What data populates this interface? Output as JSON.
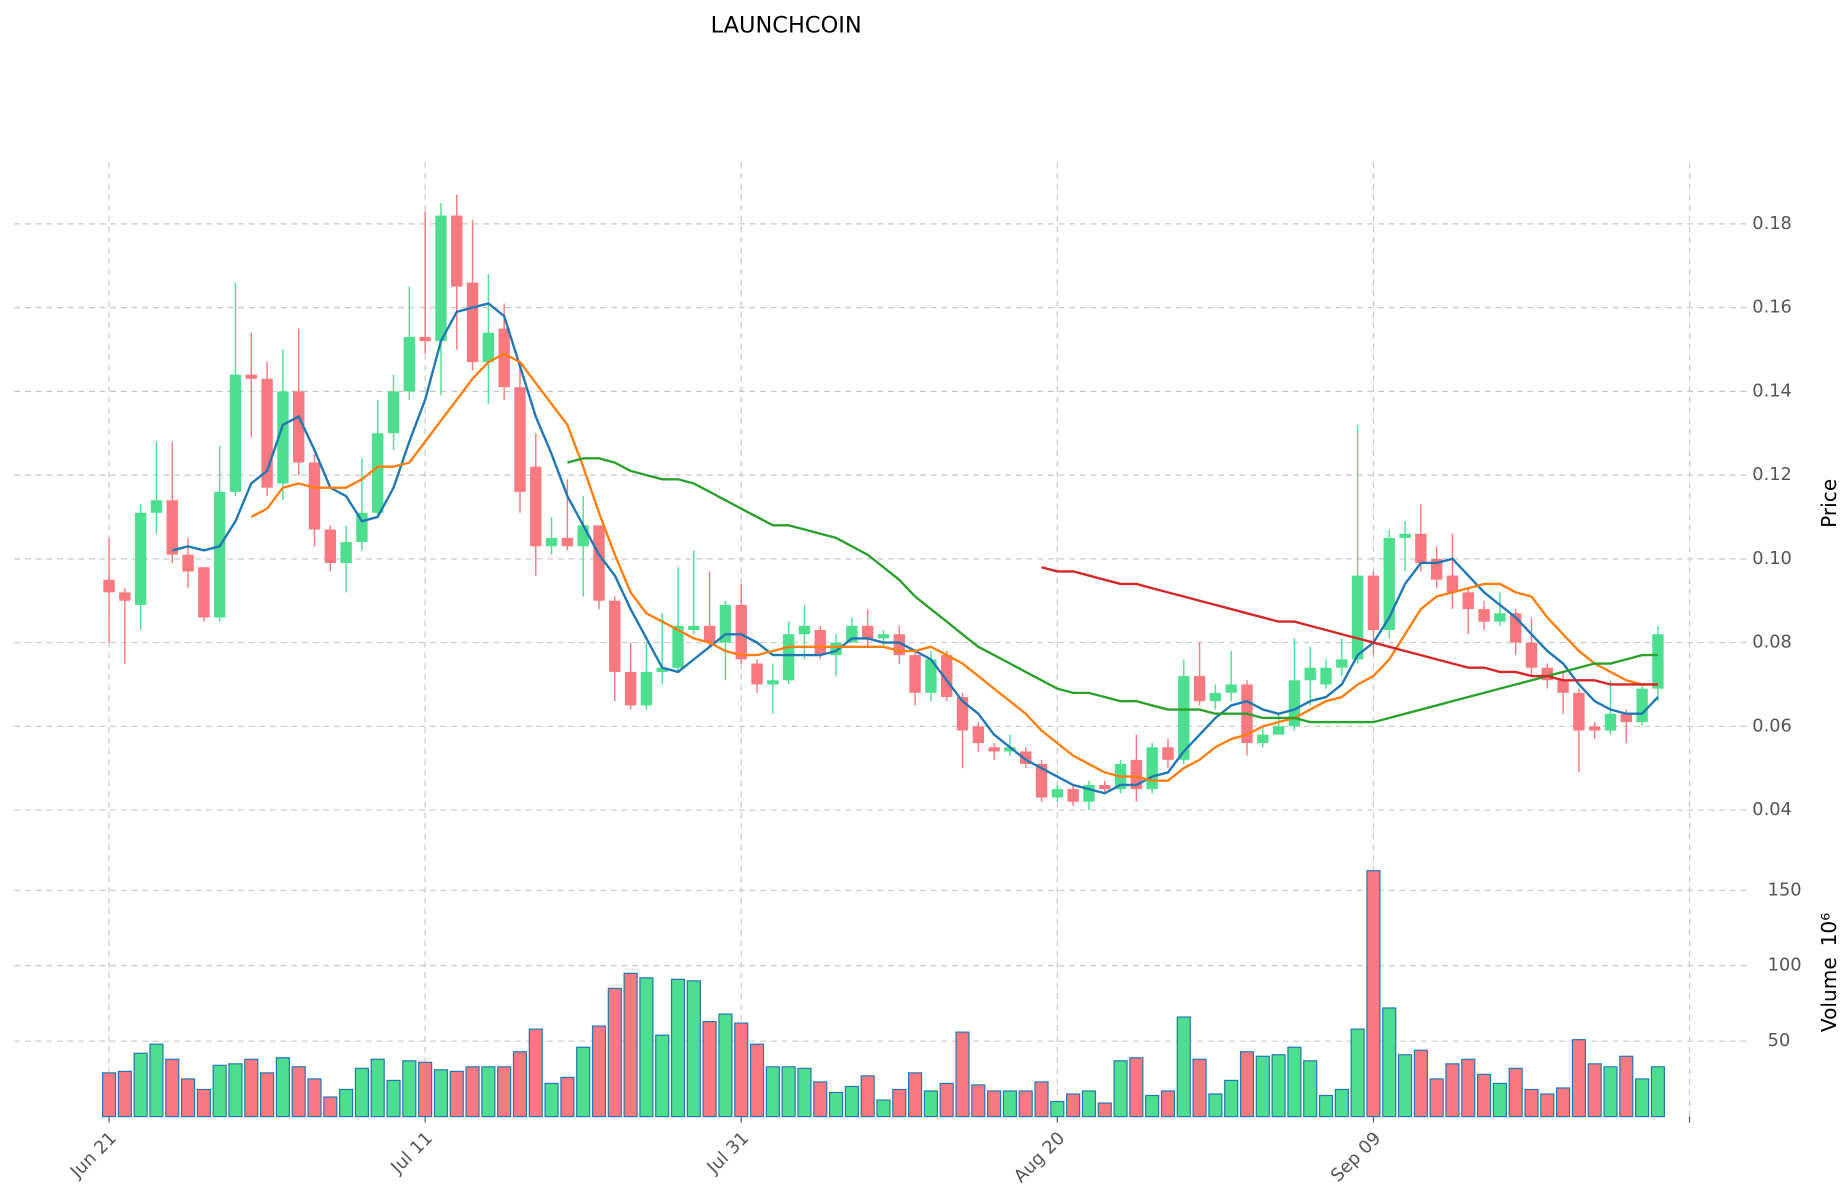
{
  "chart_data": {
    "type": "candlestick",
    "title": "LAUNCHCOIN",
    "ylabel": "Price",
    "volume_label": "Volume",
    "volume_offset": "10⁶",
    "categories": [
      "Jun 21",
      null,
      null,
      null,
      null,
      null,
      null,
      null,
      null,
      null,
      null,
      null,
      null,
      null,
      null,
      null,
      null,
      null,
      null,
      null,
      "Jul 11",
      null,
      null,
      null,
      null,
      null,
      null,
      null,
      null,
      null,
      null,
      null,
      null,
      null,
      null,
      null,
      null,
      null,
      null,
      null,
      "Jul 31",
      null,
      null,
      null,
      null,
      null,
      null,
      null,
      null,
      null,
      null,
      null,
      null,
      null,
      null,
      null,
      null,
      null,
      null,
      null,
      "Aug 20",
      null,
      null,
      null,
      null,
      null,
      null,
      null,
      null,
      null,
      null,
      null,
      null,
      null,
      null,
      null,
      null,
      null,
      null,
      null,
      "Sep 09",
      null,
      null,
      null,
      null,
      null,
      null,
      null,
      null,
      null,
      null,
      null,
      null,
      null,
      null,
      null,
      null,
      null,
      null
    ],
    "open": [
      0.095,
      0.092,
      0.089,
      0.111,
      0.114,
      0.101,
      0.098,
      0.086,
      0.116,
      0.144,
      0.143,
      0.118,
      0.14,
      0.123,
      0.107,
      0.099,
      0.104,
      0.111,
      0.13,
      0.14,
      0.153,
      0.152,
      0.182,
      0.166,
      0.147,
      0.155,
      0.141,
      0.122,
      0.103,
      0.105,
      0.103,
      0.108,
      0.09,
      0.073,
      0.065,
      0.073,
      0.074,
      0.083,
      0.084,
      0.08,
      0.089,
      0.075,
      0.07,
      0.071,
      0.082,
      0.083,
      0.077,
      0.08,
      0.084,
      0.081,
      0.082,
      0.077,
      0.068,
      0.077,
      0.067,
      0.06,
      0.055,
      0.054,
      0.054,
      0.051,
      0.043,
      0.045,
      0.042,
      0.046,
      0.045,
      0.052,
      0.045,
      0.055,
      0.052,
      0.072,
      0.066,
      0.068,
      0.07,
      0.056,
      0.058,
      0.06,
      0.071,
      0.07,
      0.074,
      0.076,
      0.096,
      0.083,
      0.105,
      0.106,
      0.1,
      0.096,
      0.092,
      0.088,
      0.085,
      0.087,
      0.08,
      0.074,
      0.071,
      0.068,
      0.06,
      0.059,
      0.063,
      0.061,
      0.069
    ],
    "high": [
      0.105,
      0.093,
      0.113,
      0.128,
      0.128,
      0.105,
      0.098,
      0.127,
      0.166,
      0.154,
      0.147,
      0.15,
      0.155,
      0.125,
      0.108,
      0.108,
      0.124,
      0.138,
      0.144,
      0.165,
      0.183,
      0.185,
      0.187,
      0.181,
      0.168,
      0.161,
      0.147,
      0.13,
      0.11,
      0.119,
      0.115,
      0.108,
      0.091,
      0.08,
      0.08,
      0.087,
      0.098,
      0.102,
      0.097,
      0.09,
      0.094,
      0.076,
      0.075,
      0.085,
      0.089,
      0.084,
      0.082,
      0.086,
      0.088,
      0.083,
      0.084,
      0.078,
      0.078,
      0.078,
      0.068,
      0.061,
      0.056,
      0.058,
      0.055,
      0.052,
      0.046,
      0.046,
      0.047,
      0.047,
      0.052,
      0.058,
      0.056,
      0.057,
      0.076,
      0.08,
      0.07,
      0.078,
      0.071,
      0.06,
      0.063,
      0.081,
      0.079,
      0.076,
      0.081,
      0.132,
      0.097,
      0.107,
      0.109,
      0.113,
      0.103,
      0.106,
      0.093,
      0.09,
      0.092,
      0.088,
      0.086,
      0.075,
      0.073,
      0.069,
      0.061,
      0.071,
      0.064,
      0.07,
      0.084
    ],
    "low": [
      0.08,
      0.075,
      0.083,
      0.106,
      0.099,
      0.093,
      0.085,
      0.085,
      0.115,
      0.129,
      0.115,
      0.114,
      0.12,
      0.103,
      0.097,
      0.092,
      0.102,
      0.11,
      0.126,
      0.138,
      0.149,
      0.139,
      0.15,
      0.145,
      0.137,
      0.138,
      0.111,
      0.096,
      0.101,
      0.102,
      0.091,
      0.088,
      0.066,
      0.064,
      0.064,
      0.07,
      0.073,
      0.082,
      0.079,
      0.071,
      0.075,
      0.068,
      0.063,
      0.07,
      0.076,
      0.076,
      0.072,
      0.08,
      0.079,
      0.079,
      0.075,
      0.065,
      0.066,
      0.066,
      0.05,
      0.054,
      0.052,
      0.053,
      0.05,
      0.042,
      0.042,
      0.041,
      0.04,
      0.044,
      0.044,
      0.042,
      0.044,
      0.05,
      0.051,
      0.065,
      0.064,
      0.066,
      0.053,
      0.055,
      0.058,
      0.059,
      0.065,
      0.069,
      0.072,
      0.075,
      0.077,
      0.081,
      0.097,
      0.097,
      0.093,
      0.088,
      0.082,
      0.083,
      0.084,
      0.077,
      0.072,
      0.069,
      0.063,
      0.049,
      0.057,
      0.058,
      0.056,
      0.06,
      0.066
    ],
    "close": [
      0.092,
      0.09,
      0.111,
      0.114,
      0.101,
      0.097,
      0.086,
      0.116,
      0.144,
      0.143,
      0.117,
      0.14,
      0.123,
      0.107,
      0.099,
      0.104,
      0.111,
      0.13,
      0.14,
      0.153,
      0.152,
      0.182,
      0.165,
      0.147,
      0.154,
      0.141,
      0.116,
      0.103,
      0.105,
      0.103,
      0.108,
      0.09,
      0.073,
      0.065,
      0.073,
      0.074,
      0.084,
      0.084,
      0.08,
      0.089,
      0.076,
      0.07,
      0.071,
      0.082,
      0.084,
      0.077,
      0.08,
      0.084,
      0.081,
      0.082,
      0.077,
      0.068,
      0.076,
      0.067,
      0.059,
      0.056,
      0.054,
      0.055,
      0.051,
      0.043,
      0.045,
      0.042,
      0.046,
      0.045,
      0.051,
      0.045,
      0.055,
      0.052,
      0.072,
      0.066,
      0.068,
      0.07,
      0.056,
      0.058,
      0.06,
      0.071,
      0.074,
      0.074,
      0.076,
      0.096,
      0.083,
      0.105,
      0.106,
      0.099,
      0.095,
      0.092,
      0.088,
      0.085,
      0.087,
      0.08,
      0.074,
      0.071,
      0.068,
      0.059,
      0.059,
      0.063,
      0.061,
      0.069,
      0.082
    ],
    "volume": [
      29,
      30,
      42,
      48,
      38,
      25,
      18,
      34,
      35,
      38,
      29,
      39,
      33,
      25,
      13,
      18,
      32,
      38,
      24,
      37,
      36,
      31,
      30,
      33,
      33,
      33,
      43,
      58,
      22,
      26,
      46,
      60,
      85,
      95,
      92,
      54,
      91,
      90,
      63,
      68,
      62,
      48,
      33,
      33,
      32,
      23,
      16,
      20,
      27,
      11,
      18,
      29,
      17,
      22,
      56,
      21,
      17,
      17,
      17,
      23,
      10,
      15,
      17,
      9,
      37,
      39,
      14,
      17,
      66,
      38,
      15,
      24,
      43,
      40,
      41,
      46,
      37,
      14,
      18,
      58,
      163,
      72,
      41,
      44,
      25,
      35,
      38,
      28,
      22,
      32,
      18,
      15,
      19,
      51,
      35,
      33,
      40,
      25,
      33
    ],
    "ma": [
      {
        "color": "#1f77b4",
        "values": [
          null,
          null,
          null,
          null,
          0.102,
          0.103,
          0.102,
          0.103,
          0.109,
          0.118,
          0.121,
          0.132,
          0.134,
          0.126,
          0.117,
          0.115,
          0.109,
          0.11,
          0.117,
          0.128,
          0.138,
          0.152,
          0.159,
          0.16,
          0.161,
          0.158,
          0.146,
          0.134,
          0.125,
          0.115,
          0.108,
          0.101,
          0.096,
          0.088,
          0.081,
          0.074,
          0.073,
          0.076,
          0.079,
          0.082,
          0.082,
          0.08,
          0.077,
          0.077,
          0.077,
          0.077,
          0.078,
          0.081,
          0.081,
          0.08,
          0.08,
          0.078,
          0.076,
          0.071,
          0.066,
          0.063,
          0.058,
          0.055,
          0.052,
          0.05,
          0.048,
          0.046,
          0.045,
          0.044,
          0.046,
          0.046,
          0.048,
          0.049,
          0.054,
          0.058,
          0.062,
          0.065,
          0.066,
          0.064,
          0.063,
          0.064,
          0.066,
          0.067,
          0.07,
          0.077,
          0.08,
          0.086,
          0.094,
          0.099,
          0.099,
          0.1,
          0.096,
          0.092,
          0.089,
          0.086,
          0.082,
          0.078,
          0.075,
          0.07,
          0.066,
          0.064,
          0.063,
          0.063,
          0.067
        ]
      },
      {
        "color": "#ff7f0e",
        "values": [
          null,
          null,
          null,
          null,
          null,
          null,
          null,
          null,
          null,
          0.11,
          0.112,
          0.117,
          0.118,
          0.117,
          0.117,
          0.117,
          0.119,
          0.122,
          0.122,
          0.123,
          0.128,
          0.133,
          0.138,
          0.143,
          0.147,
          0.149,
          0.147,
          0.142,
          0.137,
          0.132,
          0.122,
          0.111,
          0.101,
          0.092,
          0.087,
          0.085,
          0.083,
          0.081,
          0.08,
          0.078,
          0.077,
          0.077,
          0.078,
          0.079,
          0.079,
          0.079,
          0.079,
          0.079,
          0.079,
          0.079,
          0.078,
          0.078,
          0.079,
          0.077,
          0.075,
          0.072,
          0.069,
          0.066,
          0.063,
          0.059,
          0.056,
          0.053,
          0.051,
          0.049,
          0.048,
          0.048,
          0.047,
          0.047,
          0.05,
          0.052,
          0.055,
          0.057,
          0.058,
          0.06,
          0.061,
          0.062,
          0.064,
          0.066,
          0.067,
          0.07,
          0.072,
          0.076,
          0.082,
          0.088,
          0.091,
          0.092,
          0.093,
          0.094,
          0.094,
          0.092,
          0.091,
          0.086,
          0.082,
          0.078,
          0.075,
          0.073,
          0.071,
          0.07,
          0.07
        ]
      },
      {
        "color": "#2ca02c",
        "values": [
          null,
          null,
          null,
          null,
          null,
          null,
          null,
          null,
          null,
          null,
          null,
          null,
          null,
          null,
          null,
          null,
          null,
          null,
          null,
          null,
          null,
          null,
          null,
          null,
          null,
          null,
          null,
          null,
          null,
          0.123,
          0.124,
          0.124,
          0.123,
          0.121,
          0.12,
          0.119,
          0.119,
          0.118,
          0.116,
          0.114,
          0.112,
          0.11,
          0.108,
          0.108,
          0.107,
          0.106,
          0.105,
          0.103,
          0.101,
          0.098,
          0.095,
          0.091,
          0.088,
          0.085,
          0.082,
          0.079,
          0.077,
          0.075,
          0.073,
          0.071,
          0.069,
          0.068,
          0.068,
          0.067,
          0.066,
          0.066,
          0.065,
          0.064,
          0.064,
          0.064,
          0.063,
          0.063,
          0.063,
          0.062,
          0.062,
          0.062,
          0.061,
          0.061,
          0.061,
          0.061,
          0.061,
          0.062,
          0.063,
          0.064,
          0.065,
          0.066,
          0.067,
          0.068,
          0.069,
          0.07,
          0.071,
          0.072,
          0.073,
          0.074,
          0.075,
          0.075,
          0.076,
          0.077,
          0.077
        ]
      },
      {
        "color": "#d62728",
        "values": [
          null,
          null,
          null,
          null,
          null,
          null,
          null,
          null,
          null,
          null,
          null,
          null,
          null,
          null,
          null,
          null,
          null,
          null,
          null,
          null,
          null,
          null,
          null,
          null,
          null,
          null,
          null,
          null,
          null,
          null,
          null,
          null,
          null,
          null,
          null,
          null,
          null,
          null,
          null,
          null,
          null,
          null,
          null,
          null,
          null,
          null,
          null,
          null,
          null,
          null,
          null,
          null,
          null,
          null,
          null,
          null,
          null,
          null,
          null,
          0.098,
          0.097,
          0.097,
          0.096,
          0.095,
          0.094,
          0.094,
          0.093,
          0.092,
          0.091,
          0.09,
          0.089,
          0.088,
          0.087,
          0.086,
          0.085,
          0.085,
          0.084,
          0.083,
          0.082,
          0.081,
          0.08,
          0.079,
          0.078,
          0.077,
          0.076,
          0.075,
          0.074,
          0.074,
          0.073,
          0.073,
          0.072,
          0.072,
          0.071,
          0.071,
          0.071,
          0.07,
          0.07,
          0.07,
          0.07
        ]
      }
    ],
    "up_color": "#4ddf8f",
    "down_color": "#f8797f",
    "volume_edge_color": "#1f77b4",
    "xlim": [
      -6,
      100
    ],
    "xticks": [
      0,
      20,
      40,
      60,
      80,
      100
    ],
    "ylim": [
      0.0355,
      0.1947
    ],
    "yticks": [
      0.04,
      0.06,
      0.08,
      {
        "value": 0.1,
        "label": "0.10"
      },
      0.12,
      0.14,
      0.16,
      0.18
    ],
    "volume_ylim": [
      0,
      175
    ],
    "volume_yticks": [
      50,
      100,
      150
    ],
    "grid": true
  }
}
